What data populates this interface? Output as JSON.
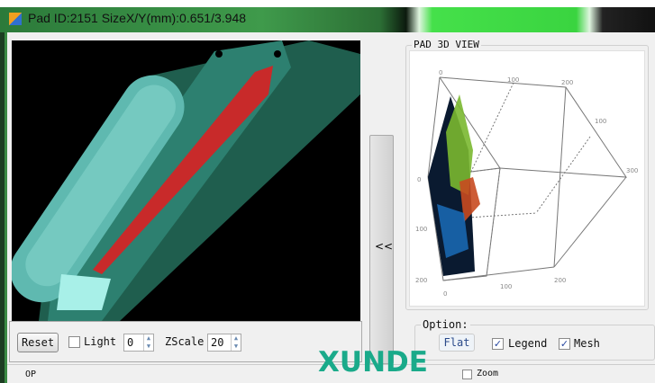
{
  "window": {
    "title": "Pad ID:2151  SizeX/Y(mm):0.651/3.948"
  },
  "controls": {
    "reset_label": "Reset",
    "light_label": "Light",
    "light_checked": false,
    "light_value": "0",
    "zscale_label": "ZScale",
    "zscale_value": "20"
  },
  "splitter": {
    "label": "<<"
  },
  "view3d": {
    "group_label": "PAD 3D VIEW",
    "ticks": [
      "0",
      "100",
      "200",
      "100",
      "300",
      "0",
      "100",
      "200",
      "0",
      "100",
      "200"
    ]
  },
  "options": {
    "group_label": "Option:",
    "flat_label": "Flat",
    "legend_label": "Legend",
    "legend_checked": true,
    "mesh_label": "Mesh",
    "mesh_checked": true
  },
  "watermark": "XUNDE",
  "bottom": {
    "op_label": "OP",
    "zoom_label": "Zoom"
  },
  "colors": {
    "accent_green": "#3a8a44",
    "watermark": "#1aaa8a",
    "pad_red": "#d02828"
  }
}
